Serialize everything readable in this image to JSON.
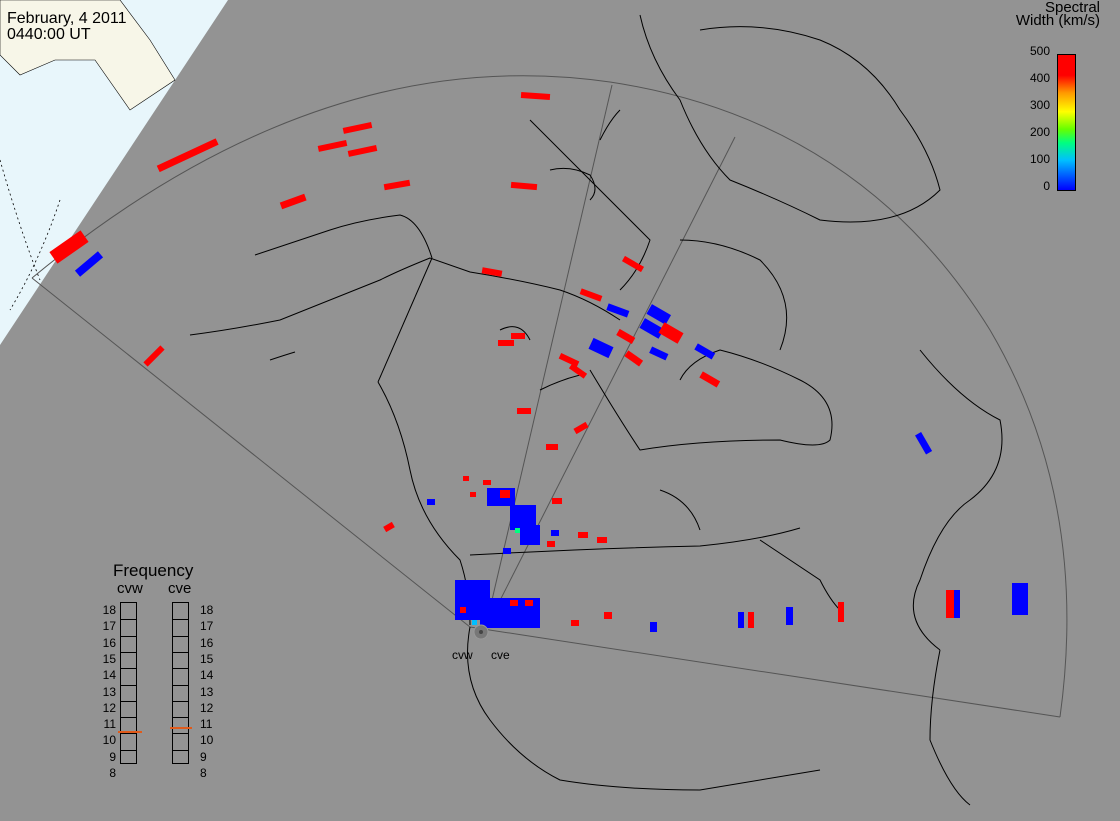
{
  "header": {
    "date": "February, 4 2011",
    "time": "0440:00 UT"
  },
  "colorbar": {
    "title_line1": "Spectral",
    "title_line2": "Width (km/s)",
    "labels": [
      "500",
      "400",
      "300",
      "200",
      "100",
      "0"
    ],
    "colors": [
      "#0000ff",
      "#00bfff",
      "#00ff80",
      "#66ff00",
      "#ffff00",
      "#ff9900",
      "#ff0000"
    ]
  },
  "frequency": {
    "title": "Frequency",
    "radars": [
      "cvw",
      "cve"
    ],
    "labels": [
      "18",
      "17",
      "16",
      "15",
      "14",
      "13",
      "12",
      "11",
      "10",
      "9",
      "8"
    ],
    "cvw_value_mhz": 10.6,
    "cve_value_mhz": 10.8
  },
  "sites": [
    "cvw",
    "cve"
  ],
  "colors": {
    "background": "#939393",
    "ocean_corner": "#e8f6fb",
    "land_corner": "#f7f6e8",
    "high_width": "#ff0000",
    "low_width": "#0000ff"
  }
}
